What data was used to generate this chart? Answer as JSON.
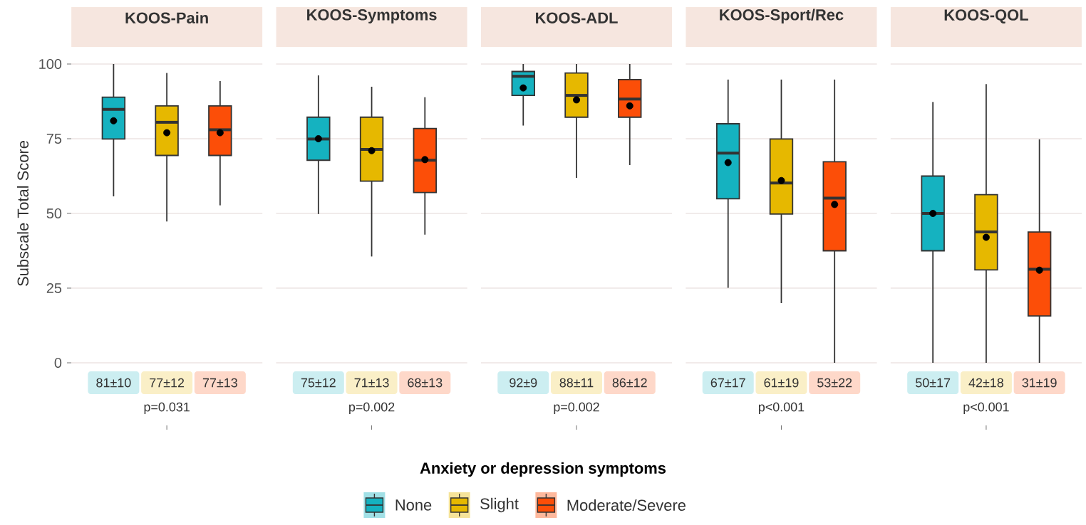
{
  "chart_data": {
    "type": "box",
    "ylabel": "Subscale Total Score",
    "categories": [
      "KOOS-Pain",
      "KOOS-Symptoms",
      "KOOS-ADL",
      "KOOS-Sport/Rec",
      "KOOS-QOL"
    ],
    "ylim": [
      0,
      100
    ],
    "yticks": [
      0,
      25,
      50,
      75,
      100
    ],
    "grid": "y",
    "legend": "bottom",
    "legend_title": "Anxiety or depression symptoms",
    "annotations": [
      "p=0.031",
      "p=0.002",
      "p=0.002",
      "p<0.001",
      "p<0.001"
    ],
    "series": [
      {
        "name": "None",
        "color": "#15b2c0",
        "value_labels": [
          "81±10",
          "75±12",
          "92±9",
          "67±17",
          "50±17"
        ],
        "boxes": [
          {
            "low": 55.7,
            "q1": 74.9,
            "median": 84.8,
            "q3": 88.9,
            "high": 100,
            "mean": 81
          },
          {
            "low": 49.8,
            "q1": 67.8,
            "median": 74.9,
            "q3": 82.2,
            "high": 96.2,
            "mean": 75
          },
          {
            "low": 79.4,
            "q1": 89.5,
            "median": 95.9,
            "q3": 97.5,
            "high": 100,
            "mean": 92
          },
          {
            "low": 25.1,
            "q1": 54.9,
            "median": 70.2,
            "q3": 80,
            "high": 94.8,
            "mean": 67
          },
          {
            "low": 0,
            "q1": 37.5,
            "median": 50,
            "q3": 62.5,
            "high": 87.3,
            "mean": 50
          }
        ]
      },
      {
        "name": "Slight",
        "color": "#e6b800",
        "value_labels": [
          "77±12",
          "71±13",
          "88±11",
          "61±19",
          "42±18"
        ],
        "boxes": [
          {
            "low": 47.3,
            "q1": 69.4,
            "median": 80.5,
            "q3": 86,
            "high": 97,
            "mean": 77
          },
          {
            "low": 35.6,
            "q1": 60.8,
            "median": 71.4,
            "q3": 82.2,
            "high": 92.4,
            "mean": 71
          },
          {
            "low": 61.9,
            "q1": 82.2,
            "median": 89.5,
            "q3": 97,
            "high": 100,
            "mean": 88
          },
          {
            "low": 20,
            "q1": 49.8,
            "median": 60.2,
            "q3": 74.9,
            "high": 94.8,
            "mean": 61
          },
          {
            "low": 0,
            "q1": 31.1,
            "median": 43.8,
            "q3": 56.3,
            "high": 93.3,
            "mean": 42
          }
        ]
      },
      {
        "name": "Moderate/Severe",
        "color": "#fc4e08",
        "value_labels": [
          "77±13",
          "68±13",
          "86±12",
          "53±22",
          "31±19"
        ],
        "boxes": [
          {
            "low": 52.7,
            "q1": 69.4,
            "median": 78,
            "q3": 86,
            "high": 94.3,
            "mean": 77
          },
          {
            "low": 42.9,
            "q1": 57,
            "median": 67.8,
            "q3": 78.4,
            "high": 88.9,
            "mean": 68
          },
          {
            "low": 66.2,
            "q1": 82.2,
            "median": 88.3,
            "q3": 94.8,
            "high": 100,
            "mean": 86
          },
          {
            "low": 0,
            "q1": 37.5,
            "median": 55.1,
            "q3": 67.3,
            "high": 94.8,
            "mean": 53
          },
          {
            "low": 0,
            "q1": 15.7,
            "median": 31.3,
            "q3": 43.8,
            "high": 74.8,
            "mean": 31
          }
        ]
      }
    ]
  }
}
